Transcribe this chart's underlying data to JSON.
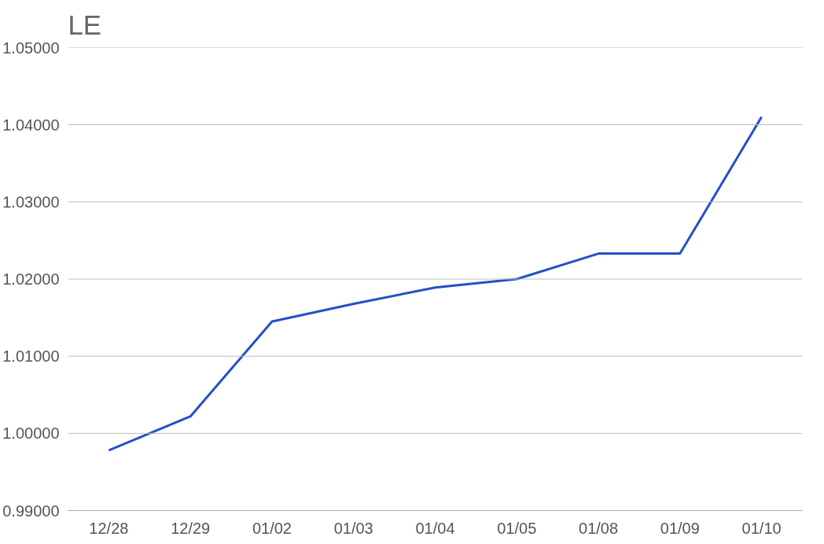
{
  "chart_data": {
    "type": "line",
    "title": "LE",
    "categories": [
      "12/28",
      "12/29",
      "01/02",
      "01/03",
      "01/04",
      "01/05",
      "01/08",
      "01/09",
      "01/10"
    ],
    "series": [
      {
        "color": "#2350c8",
        "values": [
          0.9978,
          1.0022,
          1.0145,
          1.0168,
          1.0189,
          1.02,
          1.0233,
          1.0233,
          1.041
        ]
      }
    ],
    "ylim": [
      0.99,
      1.05
    ],
    "yticks": [
      {
        "value": 0.99,
        "label": "0.99000"
      },
      {
        "value": 1.0,
        "label": "1.00000"
      },
      {
        "value": 1.01,
        "label": "1.01000"
      },
      {
        "value": 1.02,
        "label": "1.02000"
      },
      {
        "value": 1.03,
        "label": "1.03000"
      },
      {
        "value": 1.04,
        "label": "1.04000"
      },
      {
        "value": 1.05,
        "label": "1.05000"
      }
    ],
    "grid": "y",
    "marker": "none",
    "line_style": "solid"
  }
}
